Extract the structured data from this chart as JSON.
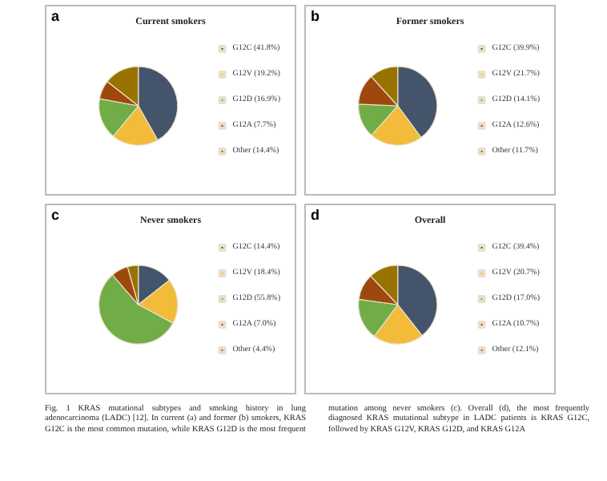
{
  "chart_data": [
    {
      "type": "pie",
      "title": "Current smokers",
      "annotations": [
        "a"
      ],
      "legend": "right",
      "categories": [
        "G12C (41.8%)",
        "G12V (19.2%)",
        "G12D (16.9%)",
        "G12A (7.7%)",
        "Other (14.4%)"
      ],
      "values": [
        41.8,
        19.2,
        16.9,
        7.7,
        14.4
      ],
      "colors": [
        "#44546a",
        "#f2bb3a",
        "#70ad47",
        "#9e480e",
        "#997300"
      ]
    },
    {
      "type": "pie",
      "title": "Former smokers",
      "annotations": [
        "b"
      ],
      "legend": "right",
      "categories": [
        "G12C (39.9%)",
        "G12V (21.7%)",
        "G12D (14.1%)",
        "G12A (12.6%)",
        "Other (11.7%)"
      ],
      "values": [
        39.9,
        21.7,
        14.1,
        12.6,
        11.7
      ],
      "colors": [
        "#44546a",
        "#f2bb3a",
        "#70ad47",
        "#9e480e",
        "#997300"
      ]
    },
    {
      "type": "pie",
      "title": "Never smokers",
      "annotations": [
        "c"
      ],
      "legend": "right",
      "categories": [
        "G12C (14.4%)",
        "G12V (18.4%)",
        "G12D (55.8%)",
        "G12A (7.0%)",
        "Other (4.4%)"
      ],
      "values": [
        14.4,
        18.4,
        55.8,
        7.0,
        4.4
      ],
      "colors": [
        "#44546a",
        "#f2bb3a",
        "#70ad47",
        "#9e480e",
        "#997300"
      ]
    },
    {
      "type": "pie",
      "title": "Overall",
      "annotations": [
        "d",
        "Fig. 1 KRAS mutational subtypes and smoking history in lung adenocarcinoma (LADC) [12]. In current (a) and former (b) smokers, KRAS G12C is the most common mutation, while KRAS G12D is the most frequent mutation among never smokers (c). Overall (d), the most frequently diagnosed KRAS mutational subtype in LADC patients is KRAS G12C, followed by KRAS G12V, KRAS G12D, and KRAS G12A"
      ],
      "legend": "right",
      "categories": [
        "G12C (39.4%)",
        "G12V (20.7%)",
        "G12D (17.0%)",
        "G12A (10.7%)",
        "Other (12.1%)"
      ],
      "values": [
        39.4,
        20.7,
        17.0,
        10.7,
        12.1
      ],
      "colors": [
        "#44546a",
        "#f2bb3a",
        "#70ad47",
        "#9e480e",
        "#997300"
      ]
    }
  ]
}
